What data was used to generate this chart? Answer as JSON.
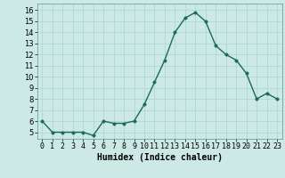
{
  "x": [
    0,
    1,
    2,
    3,
    4,
    5,
    6,
    7,
    8,
    9,
    10,
    11,
    12,
    13,
    14,
    15,
    16,
    17,
    18,
    19,
    20,
    21,
    22,
    23
  ],
  "y": [
    6.0,
    5.0,
    5.0,
    5.0,
    5.0,
    4.7,
    6.0,
    5.8,
    5.8,
    6.0,
    7.5,
    9.5,
    11.5,
    14.0,
    15.3,
    15.8,
    15.0,
    12.8,
    12.0,
    11.5,
    10.3,
    8.0,
    8.5,
    8.0
  ],
  "line_color": "#1a6b5a",
  "marker_color": "#1a6b5a",
  "bg_color": "#cce9e5",
  "grid_color": "#b0d8d3",
  "xlabel": "Humidex (Indice chaleur)",
  "xlim": [
    -0.5,
    23.5
  ],
  "ylim": [
    4.4,
    16.6
  ],
  "yticks": [
    5,
    6,
    7,
    8,
    9,
    10,
    11,
    12,
    13,
    14,
    15,
    16
  ],
  "xtick_labels": [
    "0",
    "1",
    "2",
    "3",
    "4",
    "5",
    "6",
    "7",
    "8",
    "9",
    "10",
    "11",
    "12",
    "13",
    "14",
    "15",
    "16",
    "17",
    "18",
    "19",
    "20",
    "21",
    "22",
    "23"
  ],
  "xlabel_fontsize": 7,
  "tick_fontsize": 6,
  "line_width": 1.0,
  "marker_size": 2.5
}
